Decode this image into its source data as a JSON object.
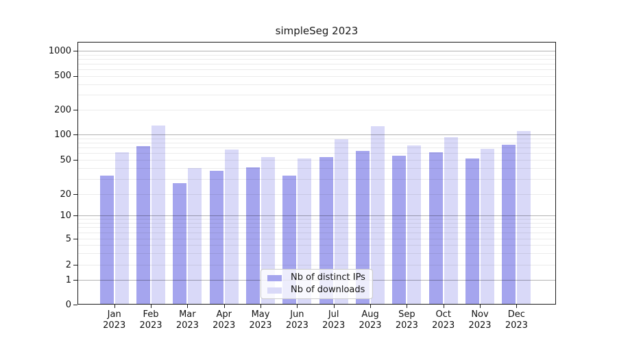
{
  "chart_data": {
    "type": "bar",
    "title": "simpleSeg 2023",
    "x_year": "2023",
    "categories": [
      "Jan",
      "Feb",
      "Mar",
      "Apr",
      "May",
      "Jun",
      "Jul",
      "Aug",
      "Sep",
      "Oct",
      "Nov",
      "Dec"
    ],
    "series": [
      {
        "name": "Nb of distinct IPs",
        "color": "#a5a5ee",
        "values": [
          33,
          73,
          27,
          37,
          41,
          33,
          54,
          64,
          56,
          61,
          52,
          76
        ]
      },
      {
        "name": "Nb of downloads",
        "color": "#d9d9f8",
        "values": [
          62,
          129,
          40,
          66,
          54,
          52,
          88,
          127,
          74,
          93,
          67,
          110
        ]
      }
    ],
    "yticks": [
      0,
      1,
      2,
      5,
      10,
      20,
      50,
      100,
      200,
      500,
      1000
    ],
    "ylabel": "",
    "xlabel": "",
    "scale": "log-like above 1, linear 0-1",
    "ylim": [
      0,
      1300
    ],
    "grid": true,
    "legend_position": "lower center inside plot"
  }
}
